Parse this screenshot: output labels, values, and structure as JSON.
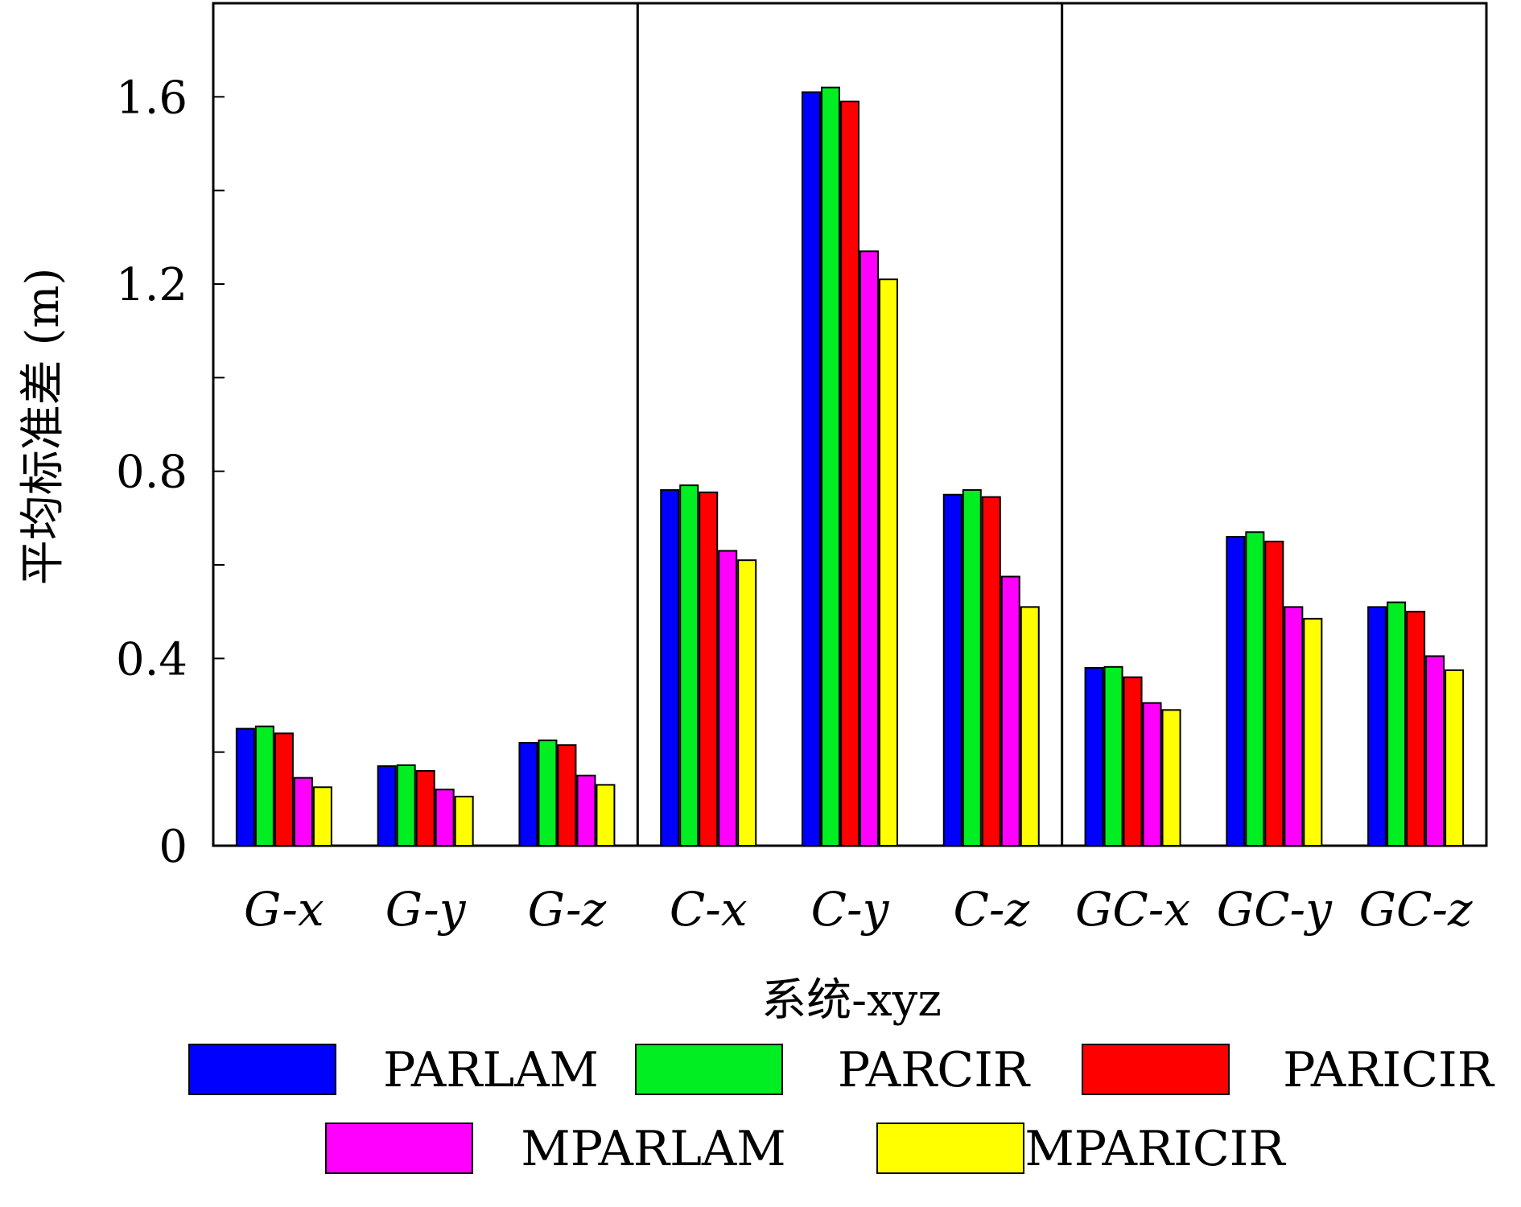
{
  "chart_data": {
    "type": "bar",
    "title": "",
    "xlabel": "系统-xyz",
    "ylabel": "平均标准差 (m)",
    "ylim": [
      0,
      1.8
    ],
    "yticks": [
      0,
      0.4,
      0.8,
      1.2,
      1.6
    ],
    "ytick_labels": [
      "0",
      "0.4",
      "0.8",
      "1.2",
      "1.6"
    ],
    "categories": [
      "G-x",
      "G-y",
      "G-z",
      "C-x",
      "C-y",
      "C-z",
      "GC-x",
      "GC-y",
      "GC-z"
    ],
    "groups": [
      "G",
      "C",
      "GC"
    ],
    "grid": false,
    "legend_position": "bottom",
    "series": [
      {
        "name": "PARLAM",
        "color": "#0000ff",
        "values": [
          0.25,
          0.17,
          0.22,
          0.76,
          1.61,
          0.75,
          0.38,
          0.66,
          0.51
        ]
      },
      {
        "name": "PARCIR",
        "color": "#00ee22",
        "values": [
          0.255,
          0.172,
          0.225,
          0.77,
          1.62,
          0.76,
          0.382,
          0.67,
          0.52
        ]
      },
      {
        "name": "PARICIR",
        "color": "#ff0000",
        "values": [
          0.24,
          0.16,
          0.215,
          0.755,
          1.59,
          0.745,
          0.36,
          0.65,
          0.5
        ]
      },
      {
        "name": "MPARLAM",
        "color": "#ff00ff",
        "values": [
          0.145,
          0.12,
          0.15,
          0.63,
          1.27,
          0.575,
          0.305,
          0.51,
          0.405
        ]
      },
      {
        "name": "MPARICIR",
        "color": "#ffff00",
        "values": [
          0.125,
          0.105,
          0.13,
          0.61,
          1.21,
          0.51,
          0.29,
          0.485,
          0.375
        ]
      }
    ]
  }
}
